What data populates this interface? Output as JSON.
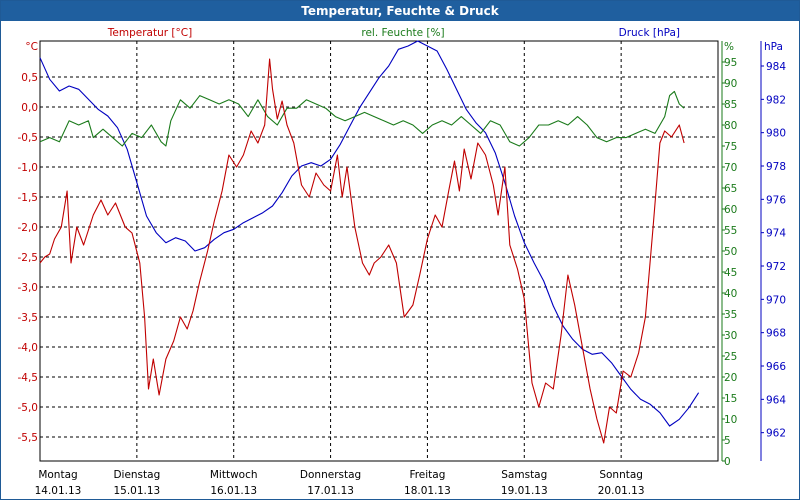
{
  "title": "Temperatur, Feuchte & Druck",
  "colors": {
    "temperature": "#c00000",
    "humidity": "#1a7a1a",
    "pressure": "#0000c0",
    "grid": "#000000",
    "titlebar": "#1f5f9f"
  },
  "chart_data": {
    "type": "line",
    "title": "Temperatur, Feuchte & Druck",
    "legend": [
      "Temperatur [°C]",
      "rel. Feuchte [%]",
      "Druck [hPa]"
    ],
    "axes": {
      "left": {
        "unit": "°C",
        "min": -5.9,
        "max": 1.1,
        "ticks": [
          "0,5",
          "0,0",
          "-0,5",
          "-1,0",
          "-1,5",
          "-2,0",
          "-2,5",
          "-3,0",
          "-3,5",
          "-4,0",
          "-4,5",
          "-5,0",
          "-5,5"
        ],
        "tick_values": [
          0.5,
          0.0,
          -0.5,
          -1.0,
          -1.5,
          -2.0,
          -2.5,
          -3.0,
          -3.5,
          -4.0,
          -4.5,
          -5.0,
          -5.5
        ]
      },
      "right1": {
        "unit": "%",
        "min": 0,
        "max": 100,
        "ticks": [
          "95",
          "90",
          "85",
          "80",
          "75",
          "70",
          "65",
          "60",
          "55",
          "50",
          "45",
          "40",
          "35",
          "30",
          "25",
          "20",
          "15",
          "10",
          "5",
          "0"
        ],
        "tick_values": [
          95,
          90,
          85,
          80,
          75,
          70,
          65,
          60,
          55,
          50,
          45,
          40,
          35,
          30,
          25,
          20,
          15,
          10,
          5,
          0
        ]
      },
      "right2": {
        "unit": "hPa",
        "min": 960.3,
        "max": 985.5,
        "ticks": [
          "984",
          "982",
          "980",
          "978",
          "976",
          "974",
          "972",
          "970",
          "968",
          "966",
          "964",
          "962"
        ],
        "tick_values": [
          984,
          982,
          980,
          978,
          976,
          974,
          972,
          970,
          968,
          966,
          964,
          962
        ]
      }
    },
    "x": {
      "min": 0,
      "max": 7,
      "unit": "days"
    },
    "days": [
      {
        "name": "Montag",
        "date": "14.01.13"
      },
      {
        "name": "Dienstag",
        "date": "15.01.13"
      },
      {
        "name": "Mittwoch",
        "date": "16.01.13"
      },
      {
        "name": "Donnerstag",
        "date": "17.01.13"
      },
      {
        "name": "Freitag",
        "date": "18.01.13"
      },
      {
        "name": "Samstag",
        "date": "19.01.13"
      },
      {
        "name": "Sonntag",
        "date": "20.01.13"
      }
    ],
    "series": [
      {
        "name": "Temperatur [°C]",
        "axis": "left",
        "color": "#c00000",
        "points": [
          [
            0.0,
            -2.6
          ],
          [
            0.05,
            -2.5
          ],
          [
            0.1,
            -2.45
          ],
          [
            0.15,
            -2.2
          ],
          [
            0.22,
            -2.0
          ],
          [
            0.28,
            -1.4
          ],
          [
            0.32,
            -2.6
          ],
          [
            0.38,
            -2.0
          ],
          [
            0.45,
            -2.3
          ],
          [
            0.55,
            -1.8
          ],
          [
            0.63,
            -1.55
          ],
          [
            0.7,
            -1.8
          ],
          [
            0.78,
            -1.6
          ],
          [
            0.88,
            -2.0
          ],
          [
            0.95,
            -2.1
          ],
          [
            1.03,
            -2.6
          ],
          [
            1.08,
            -3.5
          ],
          [
            1.12,
            -4.7
          ],
          [
            1.17,
            -4.2
          ],
          [
            1.23,
            -4.8
          ],
          [
            1.3,
            -4.2
          ],
          [
            1.38,
            -3.9
          ],
          [
            1.45,
            -3.5
          ],
          [
            1.52,
            -3.7
          ],
          [
            1.58,
            -3.4
          ],
          [
            1.65,
            -2.9
          ],
          [
            1.73,
            -2.4
          ],
          [
            1.8,
            -1.9
          ],
          [
            1.88,
            -1.4
          ],
          [
            1.95,
            -0.8
          ],
          [
            2.03,
            -1.0
          ],
          [
            2.1,
            -0.8
          ],
          [
            2.18,
            -0.4
          ],
          [
            2.25,
            -0.6
          ],
          [
            2.32,
            -0.3
          ],
          [
            2.37,
            0.8
          ],
          [
            2.4,
            0.3
          ],
          [
            2.45,
            -0.2
          ],
          [
            2.5,
            0.1
          ],
          [
            2.55,
            -0.3
          ],
          [
            2.62,
            -0.6
          ],
          [
            2.7,
            -1.3
          ],
          [
            2.78,
            -1.5
          ],
          [
            2.85,
            -1.1
          ],
          [
            2.93,
            -1.3
          ],
          [
            3.0,
            -1.4
          ],
          [
            3.07,
            -0.8
          ],
          [
            3.12,
            -1.5
          ],
          [
            3.17,
            -1.0
          ],
          [
            3.25,
            -2.0
          ],
          [
            3.33,
            -2.6
          ],
          [
            3.4,
            -2.8
          ],
          [
            3.45,
            -2.6
          ],
          [
            3.52,
            -2.5
          ],
          [
            3.6,
            -2.3
          ],
          [
            3.68,
            -2.6
          ],
          [
            3.76,
            -3.5
          ],
          [
            3.85,
            -3.3
          ],
          [
            3.92,
            -2.8
          ],
          [
            4.0,
            -2.2
          ],
          [
            4.08,
            -1.8
          ],
          [
            4.15,
            -2.0
          ],
          [
            4.22,
            -1.4
          ],
          [
            4.28,
            -0.9
          ],
          [
            4.33,
            -1.4
          ],
          [
            4.38,
            -0.7
          ],
          [
            4.45,
            -1.2
          ],
          [
            4.52,
            -0.6
          ],
          [
            4.6,
            -0.8
          ],
          [
            4.68,
            -1.3
          ],
          [
            4.73,
            -1.8
          ],
          [
            4.8,
            -1.0
          ],
          [
            4.85,
            -2.3
          ],
          [
            4.93,
            -2.7
          ],
          [
            5.0,
            -3.2
          ],
          [
            5.08,
            -4.6
          ],
          [
            5.15,
            -5.0
          ],
          [
            5.22,
            -4.6
          ],
          [
            5.3,
            -4.7
          ],
          [
            5.38,
            -3.8
          ],
          [
            5.45,
            -2.8
          ],
          [
            5.52,
            -3.3
          ],
          [
            5.6,
            -4.0
          ],
          [
            5.68,
            -4.7
          ],
          [
            5.75,
            -5.2
          ],
          [
            5.82,
            -5.6
          ],
          [
            5.88,
            -5.0
          ],
          [
            5.95,
            -5.1
          ],
          [
            6.02,
            -4.4
          ],
          [
            6.1,
            -4.5
          ],
          [
            6.18,
            -4.1
          ],
          [
            6.25,
            -3.5
          ],
          [
            6.33,
            -2.0
          ],
          [
            6.4,
            -0.6
          ],
          [
            6.45,
            -0.4
          ],
          [
            6.52,
            -0.5
          ],
          [
            6.6,
            -0.3
          ],
          [
            6.65,
            -0.6
          ]
        ]
      },
      {
        "name": "rel. Feuchte [%]",
        "axis": "right1",
        "color": "#1a7a1a",
        "points": [
          [
            0.0,
            76
          ],
          [
            0.1,
            77
          ],
          [
            0.2,
            76
          ],
          [
            0.3,
            81
          ],
          [
            0.4,
            80
          ],
          [
            0.5,
            81
          ],
          [
            0.55,
            77
          ],
          [
            0.65,
            79
          ],
          [
            0.75,
            77
          ],
          [
            0.85,
            75
          ],
          [
            0.95,
            78
          ],
          [
            1.05,
            77
          ],
          [
            1.15,
            80
          ],
          [
            1.25,
            76
          ],
          [
            1.3,
            75
          ],
          [
            1.35,
            81
          ],
          [
            1.45,
            86
          ],
          [
            1.55,
            84
          ],
          [
            1.65,
            87
          ],
          [
            1.75,
            86
          ],
          [
            1.85,
            85
          ],
          [
            1.95,
            86
          ],
          [
            2.05,
            85
          ],
          [
            2.15,
            82
          ],
          [
            2.25,
            86
          ],
          [
            2.35,
            82
          ],
          [
            2.45,
            80
          ],
          [
            2.55,
            84
          ],
          [
            2.65,
            84
          ],
          [
            2.75,
            86
          ],
          [
            2.85,
            85
          ],
          [
            2.95,
            84
          ],
          [
            3.05,
            82
          ],
          [
            3.15,
            81
          ],
          [
            3.25,
            82
          ],
          [
            3.35,
            83
          ],
          [
            3.45,
            82
          ],
          [
            3.55,
            81
          ],
          [
            3.65,
            80
          ],
          [
            3.75,
            81
          ],
          [
            3.85,
            80
          ],
          [
            3.95,
            78
          ],
          [
            4.05,
            80
          ],
          [
            4.15,
            81
          ],
          [
            4.25,
            80
          ],
          [
            4.35,
            82
          ],
          [
            4.45,
            80
          ],
          [
            4.55,
            78
          ],
          [
            4.65,
            81
          ],
          [
            4.75,
            80
          ],
          [
            4.85,
            76
          ],
          [
            4.95,
            75
          ],
          [
            5.05,
            77
          ],
          [
            5.15,
            80
          ],
          [
            5.25,
            80
          ],
          [
            5.35,
            81
          ],
          [
            5.45,
            80
          ],
          [
            5.55,
            82
          ],
          [
            5.65,
            80
          ],
          [
            5.75,
            77
          ],
          [
            5.85,
            76
          ],
          [
            5.95,
            77
          ],
          [
            6.05,
            77
          ],
          [
            6.15,
            78
          ],
          [
            6.25,
            79
          ],
          [
            6.35,
            78
          ],
          [
            6.45,
            82
          ],
          [
            6.5,
            87
          ],
          [
            6.55,
            88
          ],
          [
            6.6,
            85
          ],
          [
            6.65,
            84
          ]
        ]
      },
      {
        "name": "Druck [hPa]",
        "axis": "right2",
        "color": "#0000c0",
        "points": [
          [
            0.0,
            984.5
          ],
          [
            0.1,
            983.2
          ],
          [
            0.2,
            982.5
          ],
          [
            0.3,
            982.8
          ],
          [
            0.4,
            982.6
          ],
          [
            0.5,
            982.0
          ],
          [
            0.6,
            981.4
          ],
          [
            0.7,
            981.0
          ],
          [
            0.8,
            980.3
          ],
          [
            0.9,
            979.0
          ],
          [
            1.0,
            977.0
          ],
          [
            1.1,
            975.0
          ],
          [
            1.2,
            974.0
          ],
          [
            1.3,
            973.4
          ],
          [
            1.4,
            973.7
          ],
          [
            1.5,
            973.5
          ],
          [
            1.6,
            972.9
          ],
          [
            1.7,
            973.1
          ],
          [
            1.8,
            973.6
          ],
          [
            1.9,
            974.0
          ],
          [
            2.0,
            974.2
          ],
          [
            2.1,
            974.6
          ],
          [
            2.2,
            974.9
          ],
          [
            2.3,
            975.2
          ],
          [
            2.4,
            975.6
          ],
          [
            2.5,
            976.4
          ],
          [
            2.6,
            977.4
          ],
          [
            2.7,
            978.0
          ],
          [
            2.8,
            978.2
          ],
          [
            2.9,
            978.0
          ],
          [
            3.0,
            978.4
          ],
          [
            3.1,
            979.3
          ],
          [
            3.2,
            980.4
          ],
          [
            3.3,
            981.5
          ],
          [
            3.4,
            982.4
          ],
          [
            3.5,
            983.3
          ],
          [
            3.6,
            984.0
          ],
          [
            3.7,
            985.0
          ],
          [
            3.8,
            985.2
          ],
          [
            3.9,
            985.5
          ],
          [
            4.0,
            985.2
          ],
          [
            4.1,
            984.9
          ],
          [
            4.2,
            983.8
          ],
          [
            4.3,
            982.6
          ],
          [
            4.4,
            981.4
          ],
          [
            4.5,
            980.6
          ],
          [
            4.6,
            980.0
          ],
          [
            4.7,
            978.8
          ],
          [
            4.8,
            977.0
          ],
          [
            4.9,
            975.0
          ],
          [
            5.0,
            973.4
          ],
          [
            5.1,
            972.2
          ],
          [
            5.2,
            971.1
          ],
          [
            5.3,
            969.6
          ],
          [
            5.4,
            968.4
          ],
          [
            5.5,
            967.6
          ],
          [
            5.6,
            967.0
          ],
          [
            5.7,
            966.7
          ],
          [
            5.8,
            966.8
          ],
          [
            5.9,
            966.2
          ],
          [
            6.0,
            965.4
          ],
          [
            6.1,
            964.6
          ],
          [
            6.2,
            964.0
          ],
          [
            6.3,
            963.7
          ],
          [
            6.4,
            963.2
          ],
          [
            6.5,
            962.4
          ],
          [
            6.6,
            962.8
          ],
          [
            6.7,
            963.5
          ],
          [
            6.8,
            964.4
          ]
        ]
      }
    ]
  }
}
